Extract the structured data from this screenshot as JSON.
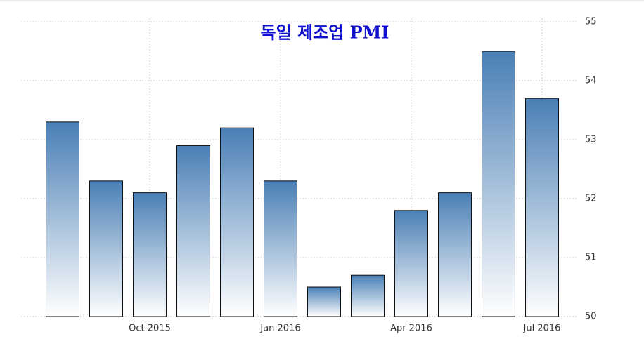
{
  "chart_data": {
    "type": "bar",
    "title": "독일 제조업 PMI",
    "categories": [
      null,
      null,
      "Oct 2015",
      null,
      null,
      "Jan 2016",
      null,
      null,
      "Apr 2016",
      null,
      null,
      "Jul 2016"
    ],
    "values": [
      53.3,
      52.3,
      52.1,
      52.9,
      53.2,
      52.3,
      50.5,
      50.7,
      51.8,
      52.1,
      54.5,
      53.7
    ],
    "color": "#4a7fb5",
    "ylim": [
      50,
      55
    ],
    "yticks": [
      50,
      51,
      52,
      53,
      54,
      55
    ],
    "grid": true
  }
}
